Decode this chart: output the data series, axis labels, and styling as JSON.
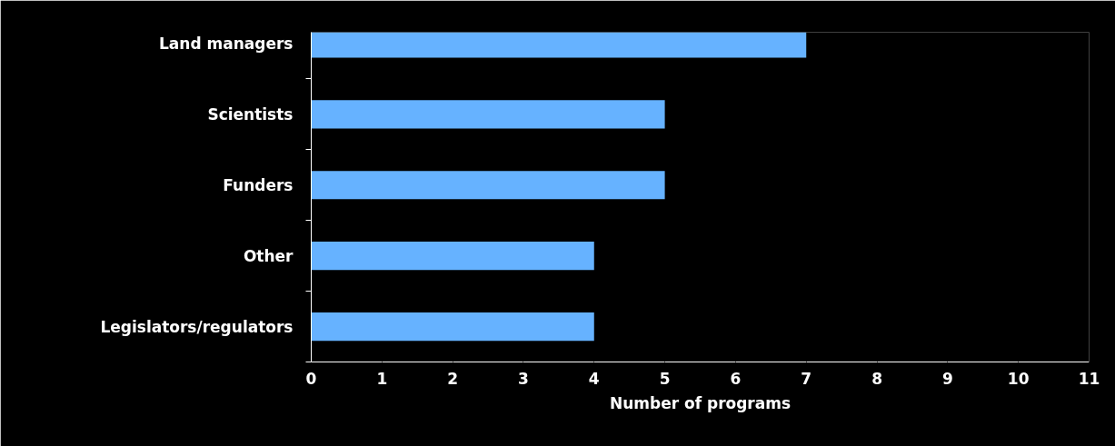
{
  "chart_data": {
    "type": "bar",
    "orientation": "horizontal",
    "xlabel": "Number of programs",
    "categories": [
      "Land managers",
      "Scientists",
      "Funders",
      "Other",
      "Legislators/regulators"
    ],
    "values": [
      7,
      5,
      5,
      4,
      4
    ],
    "color": "#66b2ff",
    "xlim": [
      0,
      11
    ],
    "xticks": [
      0,
      1,
      2,
      3,
      4,
      5,
      6,
      7,
      8,
      9,
      10,
      11
    ],
    "grid": false
  }
}
